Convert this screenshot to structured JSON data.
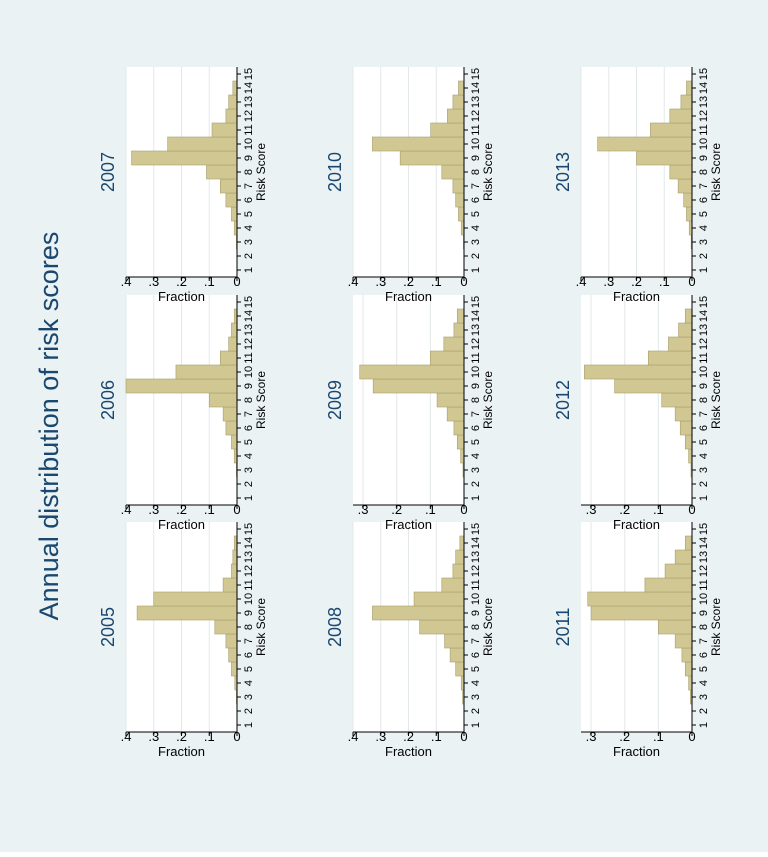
{
  "title": "Annual distribution of risk scores",
  "colors": {
    "outer_background": "#eaf2f3",
    "plot_background": "#ffffff",
    "bar_fill": "#d1c792",
    "bar_stroke": "#a89e6c",
    "grid": "#e3e8ea",
    "title_text": "#1a476f",
    "axis": "#000000"
  },
  "chart_data": [
    {
      "type": "bar",
      "year_label": "2005",
      "xlabel": "Risk Score",
      "ylabel": "Fraction",
      "x": [
        1,
        2,
        3,
        4,
        5,
        6,
        7,
        8,
        9,
        10,
        11,
        12,
        13,
        14,
        15
      ],
      "x_ticks": [
        "1",
        "2",
        "3",
        "4",
        "5",
        "6",
        "7",
        "8",
        "9",
        "10",
        "11",
        "12",
        "13",
        "14",
        "15"
      ],
      "values": [
        0,
        0,
        0.002,
        0.008,
        0.02,
        0.03,
        0.04,
        0.08,
        0.36,
        0.3,
        0.05,
        0.02,
        0.015,
        0.01,
        0
      ],
      "ylim": [
        0,
        0.4
      ],
      "y_ticks": [
        0,
        0.1,
        0.2,
        0.3,
        0.4
      ],
      "y_tick_labels": [
        "0",
        ".1",
        ".2",
        ".3",
        ".4"
      ],
      "grid": true
    },
    {
      "type": "bar",
      "year_label": "2006",
      "xlabel": "Risk Score",
      "ylabel": "Fraction",
      "x": [
        1,
        2,
        3,
        4,
        5,
        6,
        7,
        8,
        9,
        10,
        11,
        12,
        13,
        14,
        15
      ],
      "x_ticks": [
        "1",
        "2",
        "3",
        "4",
        "5",
        "6",
        "7",
        "8",
        "9",
        "10",
        "11",
        "12",
        "13",
        "14",
        "15"
      ],
      "values": [
        0,
        0,
        0.002,
        0.01,
        0.02,
        0.04,
        0.05,
        0.1,
        0.4,
        0.22,
        0.06,
        0.03,
        0.02,
        0.01,
        0
      ],
      "ylim": [
        0,
        0.4
      ],
      "y_ticks": [
        0,
        0.1,
        0.2,
        0.3,
        0.4
      ],
      "y_tick_labels": [
        "0",
        ".1",
        ".2",
        ".3",
        ".4"
      ],
      "grid": true
    },
    {
      "type": "bar",
      "year_label": "2007",
      "xlabel": "Risk Score",
      "ylabel": "Fraction",
      "x": [
        1,
        2,
        3,
        4,
        5,
        6,
        7,
        8,
        9,
        10,
        11,
        12,
        13,
        14,
        15
      ],
      "x_ticks": [
        "1",
        "2",
        "3",
        "4",
        "5",
        "6",
        "7",
        "8",
        "9",
        "10",
        "11",
        "12",
        "13",
        "14",
        "15"
      ],
      "values": [
        0,
        0,
        0.002,
        0.01,
        0.02,
        0.04,
        0.06,
        0.11,
        0.38,
        0.25,
        0.09,
        0.04,
        0.03,
        0.015,
        0
      ],
      "ylim": [
        0,
        0.4
      ],
      "y_ticks": [
        0,
        0.1,
        0.2,
        0.3,
        0.4
      ],
      "y_tick_labels": [
        "0",
        ".1",
        ".2",
        ".3",
        ".4"
      ],
      "grid": true
    },
    {
      "type": "bar",
      "year_label": "2008",
      "xlabel": "Risk Score",
      "ylabel": "Fraction",
      "x": [
        1,
        2,
        3,
        4,
        5,
        6,
        7,
        8,
        9,
        10,
        11,
        12,
        13,
        14,
        15
      ],
      "x_ticks": [
        "1",
        "2",
        "3",
        "4",
        "5",
        "6",
        "7",
        "8",
        "9",
        "10",
        "11",
        "12",
        "13",
        "14",
        "15"
      ],
      "values": [
        0,
        0,
        0.005,
        0.01,
        0.03,
        0.05,
        0.07,
        0.16,
        0.33,
        0.18,
        0.08,
        0.04,
        0.03,
        0.015,
        0
      ],
      "ylim": [
        0,
        0.4
      ],
      "y_ticks": [
        0,
        0.1,
        0.2,
        0.3,
        0.4
      ],
      "y_tick_labels": [
        "0",
        ".1",
        ".2",
        ".3",
        ".4"
      ],
      "grid": true
    },
    {
      "type": "bar",
      "year_label": "2009",
      "xlabel": "Risk Score",
      "ylabel": "Fraction",
      "x": [
        1,
        2,
        3,
        4,
        5,
        6,
        7,
        8,
        9,
        10,
        11,
        12,
        13,
        14,
        15
      ],
      "x_ticks": [
        "1",
        "2",
        "3",
        "4",
        "5",
        "6",
        "7",
        "8",
        "9",
        "10",
        "11",
        "12",
        "13",
        "14",
        "15"
      ],
      "values": [
        0,
        0,
        0.003,
        0.01,
        0.02,
        0.03,
        0.05,
        0.08,
        0.27,
        0.31,
        0.1,
        0.06,
        0.03,
        0.02,
        0
      ],
      "ylim": [
        0,
        0.33
      ],
      "y_ticks": [
        0,
        0.1,
        0.2,
        0.3
      ],
      "y_tick_labels": [
        "0",
        ".1",
        ".2",
        ".3"
      ],
      "grid": true
    },
    {
      "type": "bar",
      "year_label": "2010",
      "xlabel": "Risk Score",
      "ylabel": "Fraction",
      "x": [
        1,
        2,
        3,
        4,
        5,
        6,
        7,
        8,
        9,
        10,
        11,
        12,
        13,
        14,
        15
      ],
      "x_ticks": [
        "1",
        "2",
        "3",
        "4",
        "5",
        "6",
        "7",
        "8",
        "9",
        "10",
        "11",
        "12",
        "13",
        "14",
        "15"
      ],
      "values": [
        0,
        0,
        0.002,
        0.01,
        0.02,
        0.03,
        0.04,
        0.08,
        0.23,
        0.33,
        0.12,
        0.06,
        0.04,
        0.02,
        0
      ],
      "ylim": [
        0,
        0.4
      ],
      "y_ticks": [
        0,
        0.1,
        0.2,
        0.3,
        0.4
      ],
      "y_tick_labels": [
        "0",
        ".1",
        ".2",
        ".3",
        ".4"
      ],
      "grid": true
    },
    {
      "type": "bar",
      "year_label": "2011",
      "xlabel": "Risk Score",
      "ylabel": "Fraction",
      "x": [
        1,
        2,
        3,
        4,
        5,
        6,
        7,
        8,
        9,
        10,
        11,
        12,
        13,
        14,
        15
      ],
      "x_ticks": [
        "1",
        "2",
        "3",
        "4",
        "5",
        "6",
        "7",
        "8",
        "9",
        "10",
        "11",
        "12",
        "13",
        "14",
        "15"
      ],
      "values": [
        0,
        0,
        0.005,
        0.01,
        0.02,
        0.03,
        0.05,
        0.1,
        0.3,
        0.31,
        0.14,
        0.08,
        0.05,
        0.02,
        0
      ],
      "ylim": [
        0,
        0.33
      ],
      "y_ticks": [
        0,
        0.1,
        0.2,
        0.3
      ],
      "y_tick_labels": [
        "0",
        ".1",
        ".2",
        ".3"
      ],
      "grid": true
    },
    {
      "type": "bar",
      "year_label": "2012",
      "xlabel": "Risk Score",
      "ylabel": "Fraction",
      "x": [
        1,
        2,
        3,
        4,
        5,
        6,
        7,
        8,
        9,
        10,
        11,
        12,
        13,
        14,
        15
      ],
      "x_ticks": [
        "1",
        "2",
        "3",
        "4",
        "5",
        "6",
        "7",
        "8",
        "9",
        "10",
        "11",
        "12",
        "13",
        "14",
        "15"
      ],
      "values": [
        0,
        0,
        0.003,
        0.01,
        0.02,
        0.035,
        0.05,
        0.09,
        0.23,
        0.32,
        0.13,
        0.07,
        0.04,
        0.02,
        0
      ],
      "ylim": [
        0,
        0.33
      ],
      "y_ticks": [
        0,
        0.1,
        0.2,
        0.3
      ],
      "y_tick_labels": [
        "0",
        ".1",
        ".2",
        ".3"
      ],
      "grid": true
    },
    {
      "type": "bar",
      "year_label": "2013",
      "xlabel": "Risk Score",
      "ylabel": "Fraction",
      "x": [
        1,
        2,
        3,
        4,
        5,
        6,
        7,
        8,
        9,
        10,
        11,
        12,
        13,
        14,
        15
      ],
      "x_ticks": [
        "1",
        "2",
        "3",
        "4",
        "5",
        "6",
        "7",
        "8",
        "9",
        "10",
        "11",
        "12",
        "13",
        "14",
        "15"
      ],
      "values": [
        0,
        0,
        0.003,
        0.01,
        0.02,
        0.03,
        0.05,
        0.08,
        0.2,
        0.34,
        0.15,
        0.08,
        0.04,
        0.02,
        0
      ],
      "ylim": [
        0,
        0.4
      ],
      "y_ticks": [
        0,
        0.1,
        0.2,
        0.3,
        0.4
      ],
      "y_tick_labels": [
        "0",
        ".1",
        ".2",
        ".3",
        ".4"
      ],
      "grid": true
    }
  ]
}
